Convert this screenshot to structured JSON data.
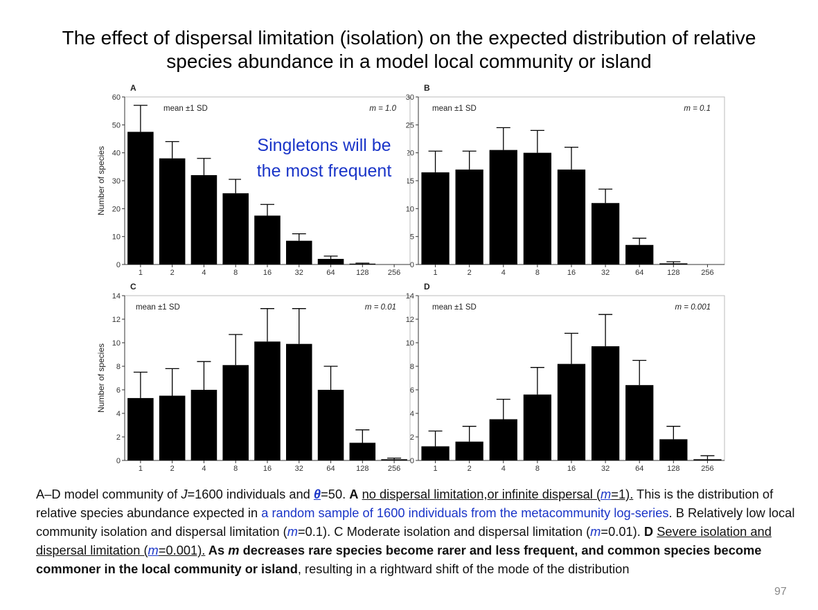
{
  "title_line1": "The effect of dispersal limitation (isolation) on the expected distribution of relative",
  "title_line2": "species abundance in a model local community or island",
  "note_line1": "Singletons will be",
  "note_line2": "the most frequent",
  "chart_data": [
    {
      "panel": "A",
      "type": "bar",
      "categories": [
        "1",
        "2",
        "4",
        "8",
        "16",
        "32",
        "64",
        "128",
        "256"
      ],
      "values": [
        47.5,
        38,
        32,
        25.5,
        17.5,
        8.5,
        2,
        0.3,
        0
      ],
      "sd_upper": [
        57,
        44,
        38,
        30.5,
        21.5,
        11,
        3,
        0.5,
        0
      ],
      "ylim": [
        0,
        60
      ],
      "yticks": [
        0,
        10,
        20,
        30,
        40,
        50,
        60
      ],
      "legend_text": "mean ±1 SD",
      "param_text": "m = 1.0",
      "ylabel": "Number of species"
    },
    {
      "panel": "B",
      "type": "bar",
      "categories": [
        "1",
        "2",
        "4",
        "8",
        "16",
        "32",
        "64",
        "128",
        "256"
      ],
      "values": [
        16.5,
        17,
        20.5,
        20,
        17,
        11,
        3.5,
        0.2,
        0
      ],
      "sd_upper": [
        20.3,
        20.3,
        24.5,
        24,
        21,
        13.5,
        4.7,
        0.5,
        0
      ],
      "ylim": [
        0,
        30
      ],
      "yticks": [
        0,
        5,
        10,
        15,
        20,
        25,
        30
      ],
      "legend_text": "mean ±1 SD",
      "param_text": "m = 0.1",
      "ylabel": ""
    },
    {
      "panel": "C",
      "type": "bar",
      "categories": [
        "1",
        "2",
        "4",
        "8",
        "16",
        "32",
        "64",
        "128",
        "256"
      ],
      "values": [
        5.3,
        5.5,
        6,
        8.1,
        10.1,
        9.9,
        6,
        1.5,
        0.1
      ],
      "sd_upper": [
        7.5,
        7.8,
        8.4,
        10.7,
        12.9,
        12.9,
        8,
        2.6,
        0.2
      ],
      "ylim": [
        0,
        14
      ],
      "yticks": [
        0,
        2,
        4,
        6,
        8,
        10,
        12,
        14
      ],
      "legend_text": "mean ±1 SD",
      "param_text": "m = 0.01",
      "ylabel": "Number of species"
    },
    {
      "panel": "D",
      "type": "bar",
      "categories": [
        "1",
        "2",
        "4",
        "8",
        "16",
        "32",
        "64",
        "128",
        "256"
      ],
      "values": [
        1.2,
        1.6,
        3.5,
        5.6,
        8.2,
        9.7,
        6.4,
        1.8,
        0.1
      ],
      "sd_upper": [
        2.5,
        2.9,
        5.2,
        7.9,
        10.8,
        12.4,
        8.5,
        2.9,
        0.4
      ],
      "ylim": [
        0,
        14
      ],
      "yticks": [
        0,
        2,
        4,
        6,
        8,
        10,
        12,
        14
      ],
      "legend_text": "mean ±1 SD",
      "param_text": "m = 0.001",
      "ylabel": ""
    }
  ],
  "caption": {
    "p1": "A–D model community of ",
    "p2": "J",
    "p3": "=1600 individuals and ",
    "p4": "θ",
    "p5": "=50. ",
    "p6": "A",
    "p7": " ",
    "p8": "no dispersal limitation,or infinite dispersal (",
    "p9": "m",
    "p10": "=1).",
    "p11": " This is the distribution of relative species abundance expected in ",
    "p12": "a random sample of 1600 individuals from the metacommunity log-series",
    "p13": ". B Relatively low local community isolation and dispersal limitation (",
    "p14": "m",
    "p15": "=0.1). C Moderate isolation and dispersal limitation (",
    "p16": "m",
    "p17": "=0.01). ",
    "p18": "D",
    "p19": " ",
    "p20": "Severe isolation and dispersal limitation (",
    "p21": "m",
    "p22": "=0.001).",
    "p23": " As ",
    "p24": "m",
    "p25": " decreases rare species become rarer and less frequent, and common species become commoner in the local community or island",
    "p26": ", resulting in a rightward shift of the mode of the distribution"
  },
  "page_number": "97"
}
